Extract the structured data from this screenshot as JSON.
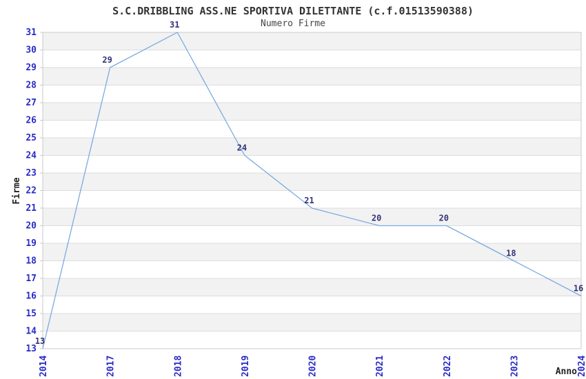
{
  "chart_data": {
    "type": "line",
    "title": "S.C.DRIBBLING ASS.NE SPORTIVA DILETTANTE (c.f.01513590388)",
    "subtitle": "Numero Firme",
    "xlabel": "Anno",
    "ylabel": "Firme",
    "categories": [
      "2014",
      "2017",
      "2018",
      "2019",
      "2020",
      "2021",
      "2022",
      "2023",
      "2024"
    ],
    "values": [
      13,
      29,
      31,
      24,
      21,
      20,
      20,
      18,
      16
    ],
    "point_labels": [
      "13",
      "29",
      "31",
      "24",
      "21",
      "20",
      "20",
      "18",
      "16"
    ],
    "ylim": [
      13,
      31
    ],
    "ytick_step": 1,
    "grid": true,
    "legend": "none",
    "band_pattern": "alternating-gray-from-top",
    "colors": {
      "line": "#79aae1",
      "tick_label": "#2a2ac8",
      "point_label": "#333377",
      "band": "#f2f2f2",
      "gridline": "#dcdcdc",
      "border": "#c9c9c9",
      "title": "#333333",
      "subtitle": "#444444",
      "axis_title": "#222222",
      "background": "#ffffff"
    }
  }
}
